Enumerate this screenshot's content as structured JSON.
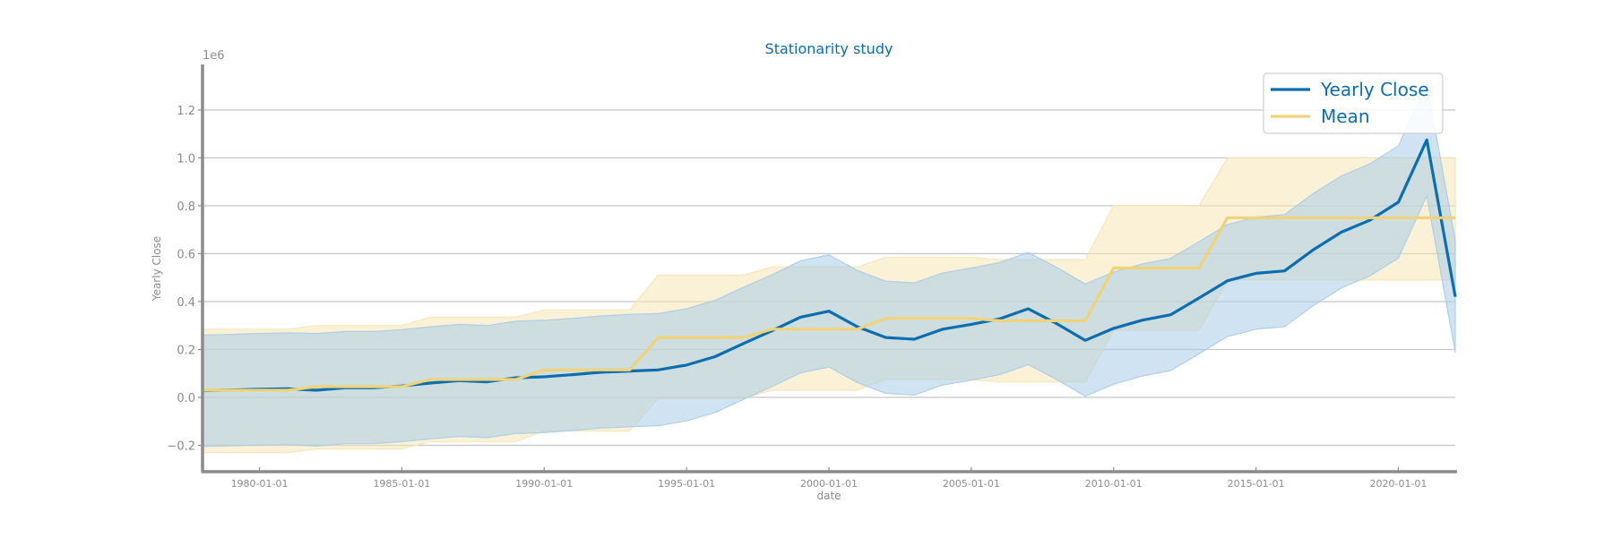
{
  "chart_data": {
    "type": "line",
    "title": "Stationarity study",
    "xlabel": "date",
    "ylabel": "Yearly Close",
    "y_multiplier": "1e6",
    "xlim": [
      1978.0,
      2022.0
    ],
    "ylim": [
      -0.31,
      1.39
    ],
    "x_ticks": [
      1980,
      1985,
      1990,
      1995,
      2000,
      2005,
      2010,
      2015,
      2020
    ],
    "x_tick_labels": [
      "1980-01-01",
      "1985-01-01",
      "1990-01-01",
      "1995-01-01",
      "2000-01-01",
      "2005-01-01",
      "2010-01-01",
      "2015-01-01",
      "2020-01-01"
    ],
    "y_ticks": [
      -0.2,
      0.0,
      0.2,
      0.4,
      0.6,
      0.8,
      1.0,
      1.2
    ],
    "y_tick_labels": [
      "−0.2",
      "0.0",
      "0.2",
      "0.4",
      "0.6",
      "0.8",
      "1.0",
      "1.2"
    ],
    "grid": "horizontal",
    "legend_position": "top-right",
    "colors": {
      "close": "#0c6db0",
      "mean": "#f0d279",
      "close_band": "#a9cce8",
      "mean_band": "#f5e6b5",
      "text": "#8c8c8c",
      "title": "#0c6db0",
      "legend_text": "#0c6db0",
      "grid": "#c8c8c8",
      "spine": "#8c8c8c"
    },
    "x": [
      1978,
      1979,
      1980,
      1981,
      1982,
      1983,
      1984,
      1985,
      1986,
      1987,
      1988,
      1989,
      1990,
      1991,
      1992,
      1993,
      1994,
      1995,
      1996,
      1997,
      1998,
      1999,
      2000,
      2001,
      2002,
      2003,
      2004,
      2005,
      2006,
      2007,
      2008,
      2009,
      2010,
      2011,
      2012,
      2013,
      2014,
      2015,
      2016,
      2017,
      2018,
      2019,
      2020,
      2021,
      2022
    ],
    "series": [
      {
        "name": "Yearly Close",
        "values": [
          0.028,
          0.031,
          0.034,
          0.036,
          0.03,
          0.04,
          0.04,
          0.048,
          0.06,
          0.07,
          0.065,
          0.082,
          0.086,
          0.095,
          0.105,
          0.11,
          0.115,
          0.135,
          0.17,
          0.225,
          0.278,
          0.335,
          0.36,
          0.295,
          0.25,
          0.243,
          0.285,
          0.305,
          0.328,
          0.37,
          0.308,
          0.238,
          0.288,
          0.322,
          0.345,
          0.415,
          0.487,
          0.518,
          0.528,
          0.615,
          0.69,
          0.74,
          0.815,
          1.075,
          0.42
        ],
        "band_upper": [
          0.26,
          0.263,
          0.267,
          0.27,
          0.267,
          0.275,
          0.275,
          0.283,
          0.295,
          0.305,
          0.3,
          0.318,
          0.322,
          0.33,
          0.34,
          0.347,
          0.35,
          0.37,
          0.405,
          0.46,
          0.512,
          0.57,
          0.595,
          0.53,
          0.485,
          0.478,
          0.52,
          0.54,
          0.563,
          0.605,
          0.543,
          0.473,
          0.523,
          0.557,
          0.58,
          0.65,
          0.722,
          0.753,
          0.763,
          0.85,
          0.925,
          0.975,
          1.05,
          1.31,
          0.655
        ],
        "band_lower": [
          -0.205,
          -0.202,
          -0.199,
          -0.197,
          -0.203,
          -0.193,
          -0.193,
          -0.185,
          -0.173,
          -0.163,
          -0.168,
          -0.151,
          -0.147,
          -0.138,
          -0.128,
          -0.123,
          -0.118,
          -0.098,
          -0.063,
          -0.008,
          0.045,
          0.102,
          0.127,
          0.062,
          0.017,
          0.01,
          0.052,
          0.072,
          0.095,
          0.137,
          0.075,
          0.005,
          0.055,
          0.089,
          0.112,
          0.182,
          0.254,
          0.285,
          0.295,
          0.382,
          0.457,
          0.507,
          0.582,
          0.842,
          0.187
        ]
      },
      {
        "name": "Mean",
        "values": [
          0.03,
          0.03,
          0.03,
          0.03,
          0.045,
          0.045,
          0.045,
          0.045,
          0.075,
          0.075,
          0.075,
          0.075,
          0.115,
          0.115,
          0.115,
          0.115,
          0.25,
          0.25,
          0.25,
          0.25,
          0.285,
          0.285,
          0.285,
          0.285,
          0.33,
          0.33,
          0.33,
          0.33,
          0.32,
          0.32,
          0.32,
          0.32,
          0.54,
          0.54,
          0.54,
          0.54,
          0.75,
          0.75,
          0.75,
          0.75,
          0.75,
          0.75,
          0.75,
          0.75,
          0.75
        ],
        "band_upper": [
          0.285,
          0.285,
          0.285,
          0.285,
          0.3,
          0.3,
          0.3,
          0.3,
          0.335,
          0.335,
          0.335,
          0.335,
          0.365,
          0.365,
          0.365,
          0.365,
          0.51,
          0.51,
          0.51,
          0.51,
          0.545,
          0.545,
          0.545,
          0.545,
          0.585,
          0.585,
          0.585,
          0.585,
          0.575,
          0.575,
          0.575,
          0.575,
          0.8,
          0.8,
          0.8,
          0.8,
          1.0,
          1.0,
          1.0,
          1.0,
          1.0,
          1.0,
          1.0,
          1.0,
          1.0
        ],
        "band_lower": [
          -0.23,
          -0.23,
          -0.23,
          -0.23,
          -0.215,
          -0.215,
          -0.215,
          -0.215,
          -0.185,
          -0.185,
          -0.185,
          -0.185,
          -0.14,
          -0.14,
          -0.14,
          -0.14,
          -0.005,
          -0.005,
          -0.005,
          -0.005,
          0.03,
          0.03,
          0.03,
          0.03,
          0.075,
          0.075,
          0.075,
          0.075,
          0.065,
          0.065,
          0.065,
          0.065,
          0.28,
          0.28,
          0.28,
          0.28,
          0.49,
          0.49,
          0.49,
          0.49,
          0.49,
          0.49,
          0.49,
          0.49,
          0.49
        ]
      }
    ]
  }
}
